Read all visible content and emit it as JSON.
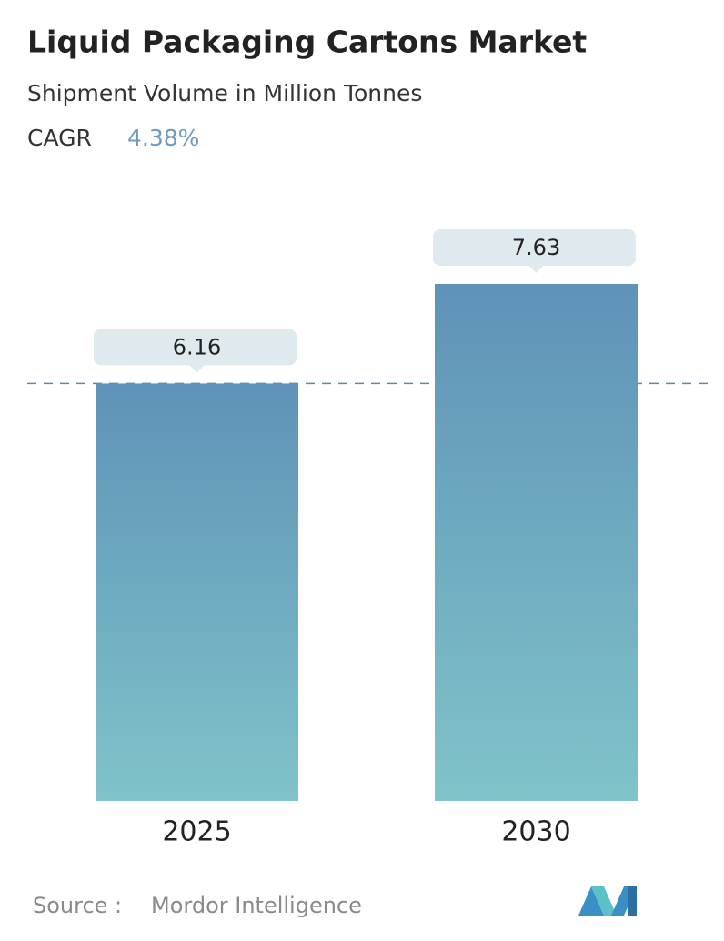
{
  "chart_data": {
    "type": "bar",
    "title": "Liquid Packaging Cartons Market",
    "subtitle": "Shipment Volume in Million Tonnes",
    "cagr_label": "CAGR",
    "cagr_value": "4.38%",
    "categories": [
      "2025",
      "2030"
    ],
    "values": [
      6.16,
      7.63
    ],
    "source_label": "Source :",
    "source": "Mordor Intelligence"
  }
}
